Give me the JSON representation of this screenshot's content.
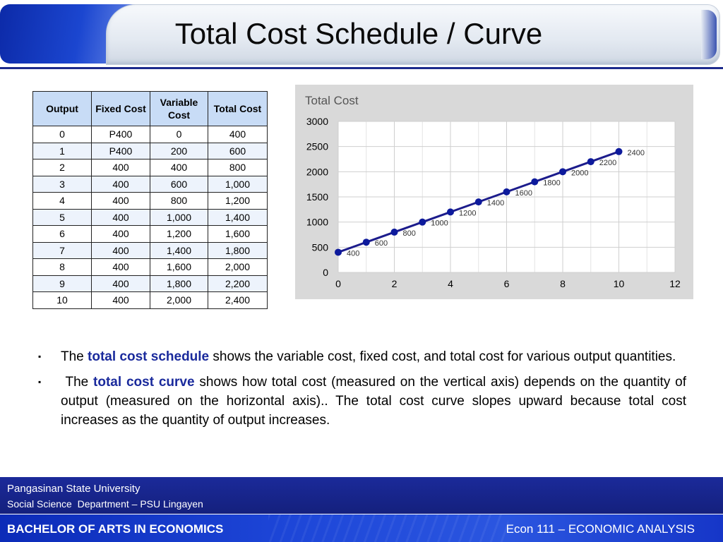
{
  "slide": {
    "title": "Total Cost Schedule / Curve"
  },
  "table": {
    "headers": [
      "Output",
      "Fixed Cost",
      "Variable Cost",
      "Total Cost"
    ],
    "rows": [
      [
        "0",
        "P400",
        "0",
        "400"
      ],
      [
        "1",
        "P400",
        "200",
        "600"
      ],
      [
        "2",
        "400",
        "400",
        "800"
      ],
      [
        "3",
        "400",
        "600",
        "1,000"
      ],
      [
        "4",
        "400",
        "800",
        "1,200"
      ],
      [
        "5",
        "400",
        "1,000",
        "1,400"
      ],
      [
        "6",
        "400",
        "1,200",
        "1,600"
      ],
      [
        "7",
        "400",
        "1,400",
        "1,800"
      ],
      [
        "8",
        "400",
        "1,600",
        "2,000"
      ],
      [
        "9",
        "400",
        "1,800",
        "2,200"
      ],
      [
        "10",
        "400",
        "2,000",
        "2,400"
      ]
    ]
  },
  "chart_data": {
    "type": "line",
    "title": "Total Cost",
    "xlabel": "",
    "ylabel": "",
    "x": [
      0,
      1,
      2,
      3,
      4,
      5,
      6,
      7,
      8,
      9,
      10
    ],
    "series": [
      {
        "values": [
          400,
          600,
          800,
          1000,
          1200,
          1400,
          1600,
          1800,
          2000,
          2200,
          2400
        ]
      }
    ],
    "xlim": [
      0,
      12
    ],
    "ylim": [
      0,
      3000
    ],
    "x_ticks": [
      0,
      2,
      4,
      6,
      8,
      10,
      12
    ],
    "y_ticks": [
      0,
      500,
      1000,
      1500,
      2000,
      2500,
      3000
    ],
    "grid": true,
    "legend": "none",
    "line_color": "#1c1c8c",
    "point_color": "#0d1a9c",
    "background": "#d9d9d9",
    "plot_background": "#ffffff"
  },
  "bullets": [
    {
      "before": "The ",
      "highlight": "total cost schedule",
      "after": " shows the variable cost, fixed cost, and total cost for various output quantities."
    },
    {
      "before": " The ",
      "highlight": "total cost curve",
      "after": " shows how total cost (measured on the vertical axis) depends on the quantity of output (measured on the horizontal axis).. The total cost curve slopes upward because total cost increases as the quantity of output increases."
    }
  ],
  "footer": {
    "line1": "Pangasinan State University",
    "line2": "Social Science  Department – PSU Lingayen",
    "program": "BACHELOR OF ARTS IN ECONOMICS",
    "course": "Econ 111 – ECONOMIC ANALYSIS"
  },
  "colors": {
    "header_blue": "#1c2a8c",
    "highlight": "#1a2a9c",
    "table_header": "#c8dcf6"
  }
}
